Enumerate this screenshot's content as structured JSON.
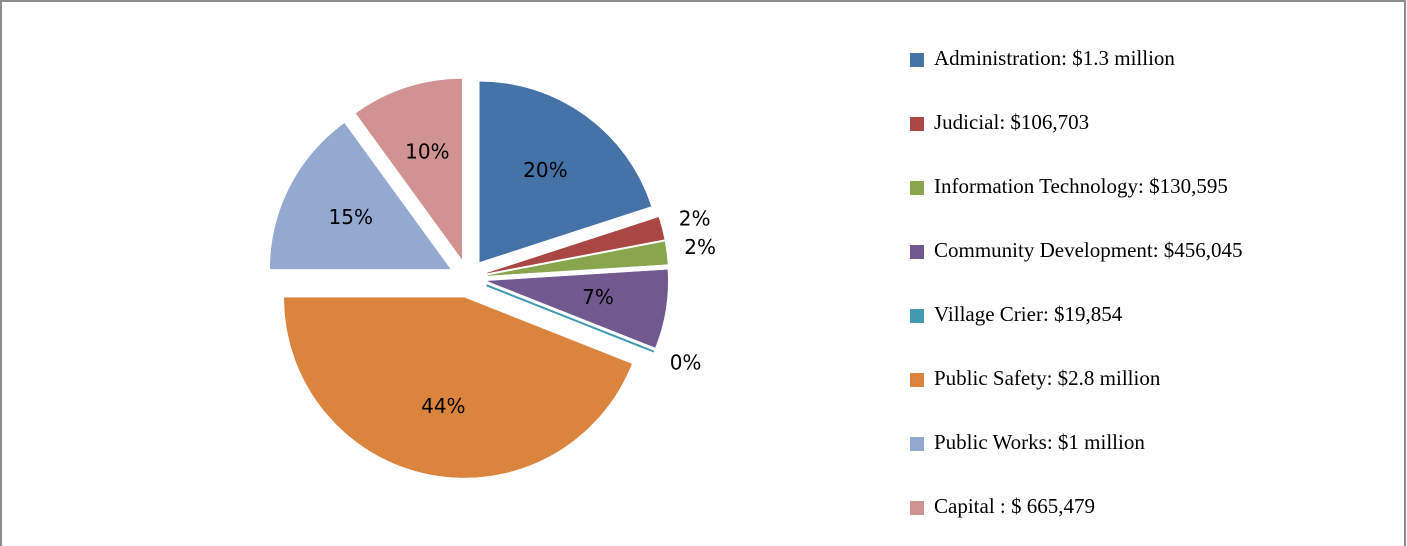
{
  "chart_data": {
    "type": "pie",
    "categories": [
      "Administration: $1.3 million",
      "Judicial: $106,703",
      "Information Technology: $130,595",
      "Community Development: $456,045",
      "Village Crier: $19,854",
      "Public Safety: $2.8 million",
      "Public Works: $1 million",
      "Capital : $ 665,479"
    ],
    "values": [
      20,
      2,
      2,
      7,
      0,
      44,
      15,
      10
    ],
    "value_labels": [
      "20%",
      "2%",
      "2%",
      "7%",
      "0%",
      "44%",
      "15%",
      "10%"
    ],
    "colors": [
      "#4572a7",
      "#aa4643",
      "#89a54e",
      "#71588f",
      "#4198af",
      "#db843d",
      "#93a9cf",
      "#d19392"
    ]
  }
}
